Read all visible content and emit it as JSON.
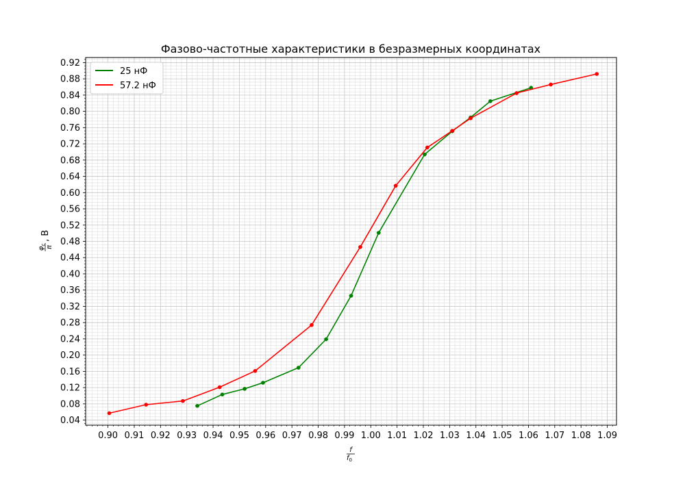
{
  "chart_data": {
    "type": "line",
    "title": "Фазово-частотные характеристики в безразмерных координатах",
    "xlabel": {
      "numerator": "f",
      "denominator": "f",
      "denominator_subscript": "0"
    },
    "ylabel": {
      "numerator": "φ",
      "numerator_subscript": "c",
      "denominator": "π",
      "suffix": ", В"
    },
    "xlim": [
      0.8915,
      1.0935
    ],
    "ylim": [
      0.0275,
      0.9325
    ],
    "x_ticks": [
      "0.90",
      "0.91",
      "0.92",
      "0.93",
      "0.94",
      "0.95",
      "0.96",
      "0.97",
      "0.98",
      "0.99",
      "1.00",
      "1.01",
      "1.02",
      "1.03",
      "1.04",
      "1.05",
      "1.06",
      "1.07",
      "1.08",
      "1.09"
    ],
    "y_ticks": [
      "0.04",
      "0.08",
      "0.12",
      "0.16",
      "0.20",
      "0.24",
      "0.28",
      "0.32",
      "0.36",
      "0.40",
      "0.44",
      "0.48",
      "0.52",
      "0.56",
      "0.60",
      "0.64",
      "0.68",
      "0.72",
      "0.76",
      "0.80",
      "0.84",
      "0.88",
      "0.92"
    ],
    "x_minor_step": 0.002,
    "y_minor_step": 0.008,
    "grid": true,
    "legend_position": "top-left",
    "series": [
      {
        "name": "25 нФ",
        "color": "#008000",
        "x": [
          0.934,
          0.9435,
          0.952,
          0.959,
          0.9725,
          0.983,
          0.9925,
          1.003,
          1.0205,
          1.031,
          1.038,
          1.0455,
          1.061
        ],
        "y": [
          0.075,
          0.103,
          0.117,
          0.132,
          0.169,
          0.239,
          0.346,
          0.501,
          0.694,
          0.751,
          0.785,
          0.825,
          0.858
        ]
      },
      {
        "name": "57.2 нФ",
        "color": "#ff0000",
        "x": [
          0.9005,
          0.9145,
          0.9285,
          0.9425,
          0.956,
          0.9775,
          0.996,
          1.0095,
          1.0215,
          1.031,
          1.038,
          1.0555,
          1.0685,
          1.086
        ],
        "y": [
          0.057,
          0.078,
          0.087,
          0.121,
          0.161,
          0.274,
          0.466,
          0.617,
          0.711,
          0.752,
          0.783,
          0.845,
          0.866,
          0.892
        ]
      }
    ]
  }
}
